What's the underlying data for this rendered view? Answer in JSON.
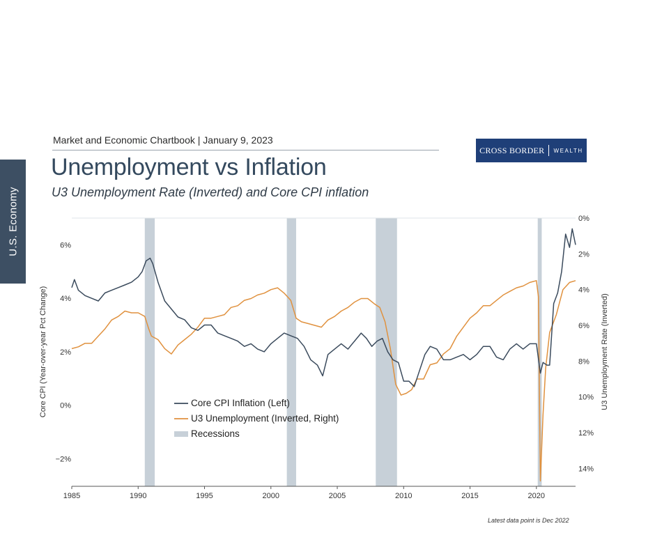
{
  "side_tab": {
    "label": "U.S. Economy"
  },
  "header": {
    "line": "Market and Economic Chartbook | January 9, 2023",
    "logo_left": "CROSS BORDER",
    "logo_right": "WEALTH"
  },
  "footnote": "Latest data point is Dec 2022",
  "colors": {
    "cpi": "#3a4a5c",
    "unemployment": "#e0913e",
    "recession": "#c7d0d8"
  },
  "chart_data": {
    "type": "line",
    "title": "Unemployment vs Inflation",
    "subtitle": "U3 Unemployment Rate (Inverted) and Core CPI inflation",
    "xlabel": "",
    "ylabel_left": "Core CPI (Year-over-year Pct Change)",
    "ylabel_right": "U3 Unemployment Rate (Inverted)",
    "xlim": [
      1985,
      2022.95
    ],
    "ylim_left": [
      -3.03,
      7.0
    ],
    "ylim_right_inverted": [
      0,
      15
    ],
    "x_ticks": [
      1985,
      1990,
      1995,
      2000,
      2005,
      2010,
      2015,
      2020
    ],
    "x_tick_labels": [
      "1985",
      "1990",
      "1995",
      "2000",
      "2005",
      "2010",
      "2015",
      "2020"
    ],
    "y_left_ticks": [
      -2,
      0,
      2,
      4,
      6
    ],
    "y_left_tick_labels": [
      "−2%",
      "0%",
      "2%",
      "4%",
      "6%"
    ],
    "y_right_ticks": [
      0,
      2,
      4,
      6,
      8,
      10,
      12,
      14
    ],
    "y_right_tick_labels": [
      "0%",
      "2%",
      "4%",
      "6%",
      "8%",
      "10%",
      "12%",
      "14%"
    ],
    "legend": {
      "position": "center-left",
      "entries": [
        "Core CPI Inflation (Left)",
        "U3 Unemployment (Inverted, Right)",
        "Recessions"
      ]
    },
    "recessions": [
      {
        "start": 1990.5,
        "end": 1991.25
      },
      {
        "start": 2001.2,
        "end": 2001.9
      },
      {
        "start": 2007.9,
        "end": 2009.5
      },
      {
        "start": 2020.1,
        "end": 2020.4
      }
    ],
    "series": [
      {
        "name": "Core CPI Inflation (Left)",
        "axis": "left",
        "x": [
          1985,
          1985.2,
          1985.5,
          1986,
          1986.5,
          1987,
          1987.5,
          1988,
          1988.5,
          1989,
          1989.5,
          1990,
          1990.3,
          1990.6,
          1990.9,
          1991.1,
          1991.5,
          1992,
          1992.5,
          1993,
          1993.5,
          1994,
          1994.5,
          1995,
          1995.5,
          1996,
          1996.5,
          1997,
          1997.5,
          1998,
          1998.5,
          1999,
          1999.5,
          2000,
          2000.5,
          2001,
          2001.5,
          2002,
          2002.5,
          2003,
          2003.5,
          2003.9,
          2004.3,
          2004.8,
          2005.3,
          2005.8,
          2006.3,
          2006.8,
          2007.2,
          2007.6,
          2008,
          2008.4,
          2008.8,
          2009.2,
          2009.6,
          2010,
          2010.4,
          2010.8,
          2011.2,
          2011.6,
          2012,
          2012.5,
          2013,
          2013.5,
          2014,
          2014.5,
          2015,
          2015.5,
          2016,
          2016.5,
          2017,
          2017.5,
          2018,
          2018.5,
          2019,
          2019.5,
          2020,
          2020.3,
          2020.5,
          2020.8,
          2021,
          2021.3,
          2021.6,
          2021.9,
          2022.2,
          2022.5,
          2022.7,
          2022.95
        ],
        "y": [
          4.4,
          4.7,
          4.3,
          4.1,
          4.0,
          3.9,
          4.2,
          4.3,
          4.4,
          4.5,
          4.6,
          4.8,
          5.0,
          5.4,
          5.5,
          5.3,
          4.6,
          3.9,
          3.6,
          3.3,
          3.2,
          2.9,
          2.8,
          3.0,
          3.0,
          2.7,
          2.6,
          2.5,
          2.4,
          2.2,
          2.3,
          2.1,
          2.0,
          2.3,
          2.5,
          2.7,
          2.6,
          2.5,
          2.2,
          1.7,
          1.5,
          1.1,
          1.9,
          2.1,
          2.3,
          2.1,
          2.4,
          2.7,
          2.5,
          2.2,
          2.4,
          2.5,
          2.0,
          1.7,
          1.6,
          0.9,
          0.9,
          0.7,
          1.3,
          1.9,
          2.2,
          2.1,
          1.7,
          1.7,
          1.8,
          1.9,
          1.7,
          1.9,
          2.2,
          2.2,
          1.8,
          1.7,
          2.1,
          2.3,
          2.1,
          2.3,
          2.3,
          1.2,
          1.6,
          1.5,
          1.5,
          3.8,
          4.2,
          5.0,
          6.4,
          5.9,
          6.6,
          6.0
        ]
      },
      {
        "name": "U3 Unemployment (Inverted, Right)",
        "axis": "right",
        "x": [
          1985,
          1985.5,
          1986,
          1986.5,
          1987,
          1987.5,
          1988,
          1988.5,
          1989,
          1989.5,
          1990,
          1990.5,
          1990.8,
          1991,
          1991.5,
          1992,
          1992.5,
          1993,
          1993.5,
          1994,
          1994.5,
          1995,
          1995.5,
          1996,
          1996.5,
          1997,
          1997.5,
          1998,
          1998.5,
          1999,
          1999.5,
          2000,
          2000.5,
          2001,
          2001.5,
          2001.9,
          2002.3,
          2002.8,
          2003.3,
          2003.8,
          2004.3,
          2004.8,
          2005.3,
          2005.8,
          2006.3,
          2006.8,
          2007.3,
          2007.8,
          2008.2,
          2008.6,
          2009,
          2009.4,
          2009.8,
          2010.2,
          2010.6,
          2011,
          2011.5,
          2012,
          2012.5,
          2013,
          2013.5,
          2014,
          2014.5,
          2015,
          2015.5,
          2016,
          2016.5,
          2017,
          2017.5,
          2018,
          2018.5,
          2019,
          2019.5,
          2020,
          2020.15,
          2020.3,
          2020.5,
          2020.7,
          2021,
          2021.5,
          2022,
          2022.5,
          2022.95
        ],
        "y": [
          7.3,
          7.2,
          7.0,
          7.0,
          6.6,
          6.2,
          5.7,
          5.5,
          5.2,
          5.3,
          5.3,
          5.5,
          6.2,
          6.6,
          6.8,
          7.3,
          7.6,
          7.1,
          6.8,
          6.5,
          6.1,
          5.6,
          5.6,
          5.5,
          5.4,
          5.0,
          4.9,
          4.6,
          4.5,
          4.3,
          4.2,
          4.0,
          3.9,
          4.2,
          4.6,
          5.6,
          5.8,
          5.9,
          6.0,
          6.1,
          5.7,
          5.5,
          5.2,
          5.0,
          4.7,
          4.5,
          4.5,
          4.8,
          5.0,
          5.8,
          7.3,
          9.3,
          9.9,
          9.8,
          9.6,
          9.0,
          9.0,
          8.2,
          8.1,
          7.6,
          7.3,
          6.6,
          6.1,
          5.6,
          5.3,
          4.9,
          4.9,
          4.6,
          4.3,
          4.1,
          3.9,
          3.8,
          3.6,
          3.5,
          4.4,
          14.7,
          11.0,
          8.4,
          6.4,
          5.4,
          4.0,
          3.6,
          3.5
        ]
      }
    ]
  }
}
